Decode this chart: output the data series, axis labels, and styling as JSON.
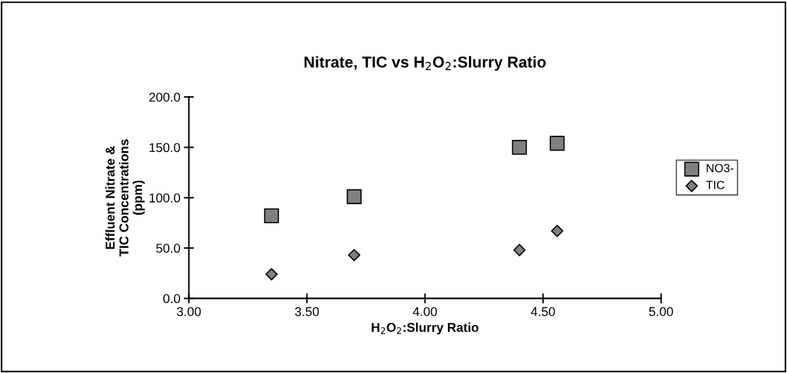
{
  "chart_data": {
    "type": "scatter",
    "title": "Nitrate, TIC vs H$_{2}$O$_{2}$:Slurry Ratio",
    "xlabel": "H$_{2}$O$_{2}$:Slurry Ratio",
    "ylabel": "Effluent Nitrate &\nTIC Concentrations\n(ppm)",
    "x": [
      3.35,
      3.7,
      4.4,
      4.56
    ],
    "series": [
      {
        "name": "NO3-",
        "color": "#808080",
        "marker": "square",
        "values": [
          82,
          101,
          150,
          154
        ]
      },
      {
        "name": "TIC",
        "color": "#808080",
        "marker": "diamond",
        "values": [
          24,
          43,
          48,
          67
        ]
      }
    ],
    "xlim": [
      3.0,
      5.0
    ],
    "xticks": [
      {
        "value": 3.0,
        "label": "3.00"
      },
      {
        "value": 3.5,
        "label": "3.50"
      },
      {
        "value": 4.0,
        "label": "4.00"
      },
      {
        "value": 4.5,
        "label": "4.50"
      },
      {
        "value": 5.0,
        "label": "5.00"
      }
    ],
    "ylim": [
      0,
      200
    ],
    "yticks": [
      {
        "value": 0,
        "label": "0.0"
      },
      {
        "value": 50,
        "label": "50.0"
      },
      {
        "value": 100,
        "label": "100.0"
      },
      {
        "value": 150,
        "label": "150.0"
      },
      {
        "value": 200,
        "label": "200.0"
      }
    ],
    "grid": false,
    "legend": "right"
  }
}
